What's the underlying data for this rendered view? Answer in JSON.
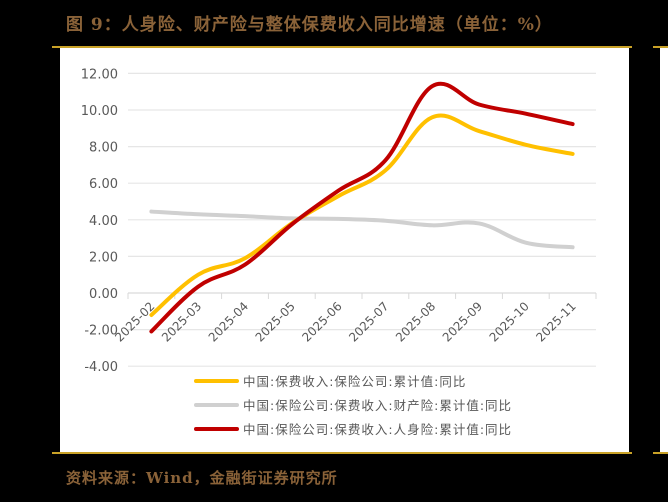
{
  "header": {
    "title": "图 9：人身险、财产险与整体保费收入同比增速（单位：%）"
  },
  "footer": {
    "source": "资料来源：Wind，金融街证券研究所"
  },
  "colors": {
    "accent_gold": "#c9a227",
    "title_brown": "#8a6238",
    "yellow": "#ffc000",
    "gray": "#d0d0d0",
    "red": "#c00000"
  },
  "chart_data": {
    "type": "line",
    "title": "图 9：人身险、财产险与整体保费收入同比增速（单位：%）",
    "xlabel": "",
    "ylabel": "",
    "ylim": [
      -4,
      12
    ],
    "yticks": [
      "12.00",
      "10.00",
      "8.00",
      "6.00",
      "4.00",
      "2.00",
      "0.00",
      "-2.00",
      "-4.00"
    ],
    "grid": true,
    "legend_position": "bottom-inside",
    "categories": [
      "2025-02",
      "2025-03",
      "2025-04",
      "2025-05",
      "2025-06",
      "2025-07",
      "2025-08",
      "2025-09",
      "2025-10",
      "2025-11"
    ],
    "series": [
      {
        "name": "中国:保费收入:保险公司:累计值:同比",
        "color": "#ffc000",
        "values": [
          -1.2,
          1.0,
          1.9,
          3.8,
          5.3,
          6.7,
          9.6,
          8.85,
          8.1,
          7.6
        ]
      },
      {
        "name": "中国:保险公司:保费收入:财产险:累计值:同比",
        "color": "#d0d0d0",
        "values": [
          4.45,
          4.3,
          4.2,
          4.08,
          4.05,
          3.95,
          3.7,
          3.8,
          2.75,
          2.5
        ]
      },
      {
        "name": "中国:保险公司:保费收入:人身险:累计值:同比",
        "color": "#c00000",
        "values": [
          -2.1,
          0.35,
          1.55,
          3.75,
          5.6,
          7.25,
          11.3,
          10.3,
          9.8,
          9.23
        ]
      }
    ]
  }
}
